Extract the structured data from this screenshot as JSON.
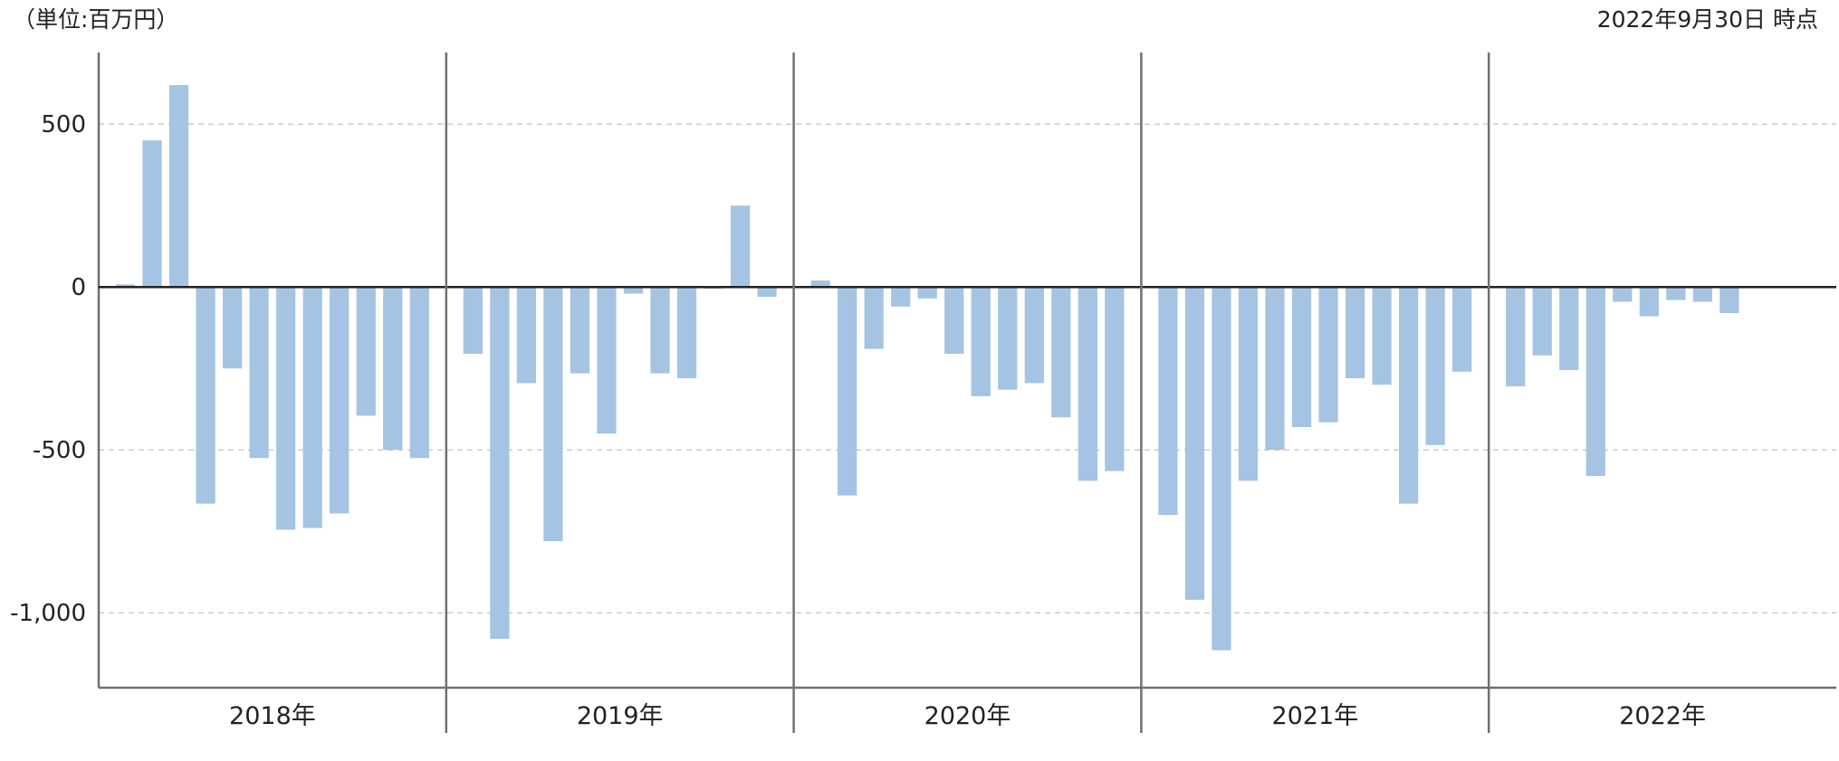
{
  "header": {
    "unit_label": "（単位:百万円）",
    "as_of_label": "2022年9月30日 時点"
  },
  "colors": {
    "bar": "#a5c4e3",
    "grid": "#c8c8c8",
    "axis": "#707070",
    "zero_line": "#222222",
    "negative_tick": "#e02020",
    "positive_tick": "#222222"
  },
  "chart_data": {
    "type": "bar",
    "title": "",
    "xlabel": "",
    "ylabel": "",
    "ylim": [
      -1230,
      720
    ],
    "yticks": [
      {
        "value": 500,
        "label": "500"
      },
      {
        "value": 0,
        "label": "0"
      },
      {
        "value": -500,
        "label": "-500"
      },
      {
        "value": -1000,
        "label": "-1,000"
      }
    ],
    "grid": true,
    "legend": "none",
    "groups": [
      {
        "label": "2018年",
        "values": [
          8,
          450,
          620,
          -665,
          -250,
          -525,
          -745,
          -740,
          -695,
          -395,
          -500,
          -525
        ]
      },
      {
        "label": "2019年",
        "values": [
          -205,
          -1080,
          -295,
          -780,
          -265,
          -450,
          -20,
          -265,
          -280,
          -5,
          250,
          -30
        ]
      },
      {
        "label": "2020年",
        "values": [
          20,
          -640,
          -190,
          -60,
          -35,
          -205,
          -335,
          -315,
          -295,
          -400,
          -595,
          -565
        ]
      },
      {
        "label": "2021年",
        "values": [
          -700,
          -960,
          -1115,
          -595,
          -500,
          -430,
          -415,
          -280,
          -300,
          -665,
          -485,
          -260
        ]
      },
      {
        "label": "2022年",
        "values": [
          -305,
          -210,
          -255,
          -580,
          -45,
          -90,
          -40,
          -45,
          -80
        ]
      }
    ]
  }
}
